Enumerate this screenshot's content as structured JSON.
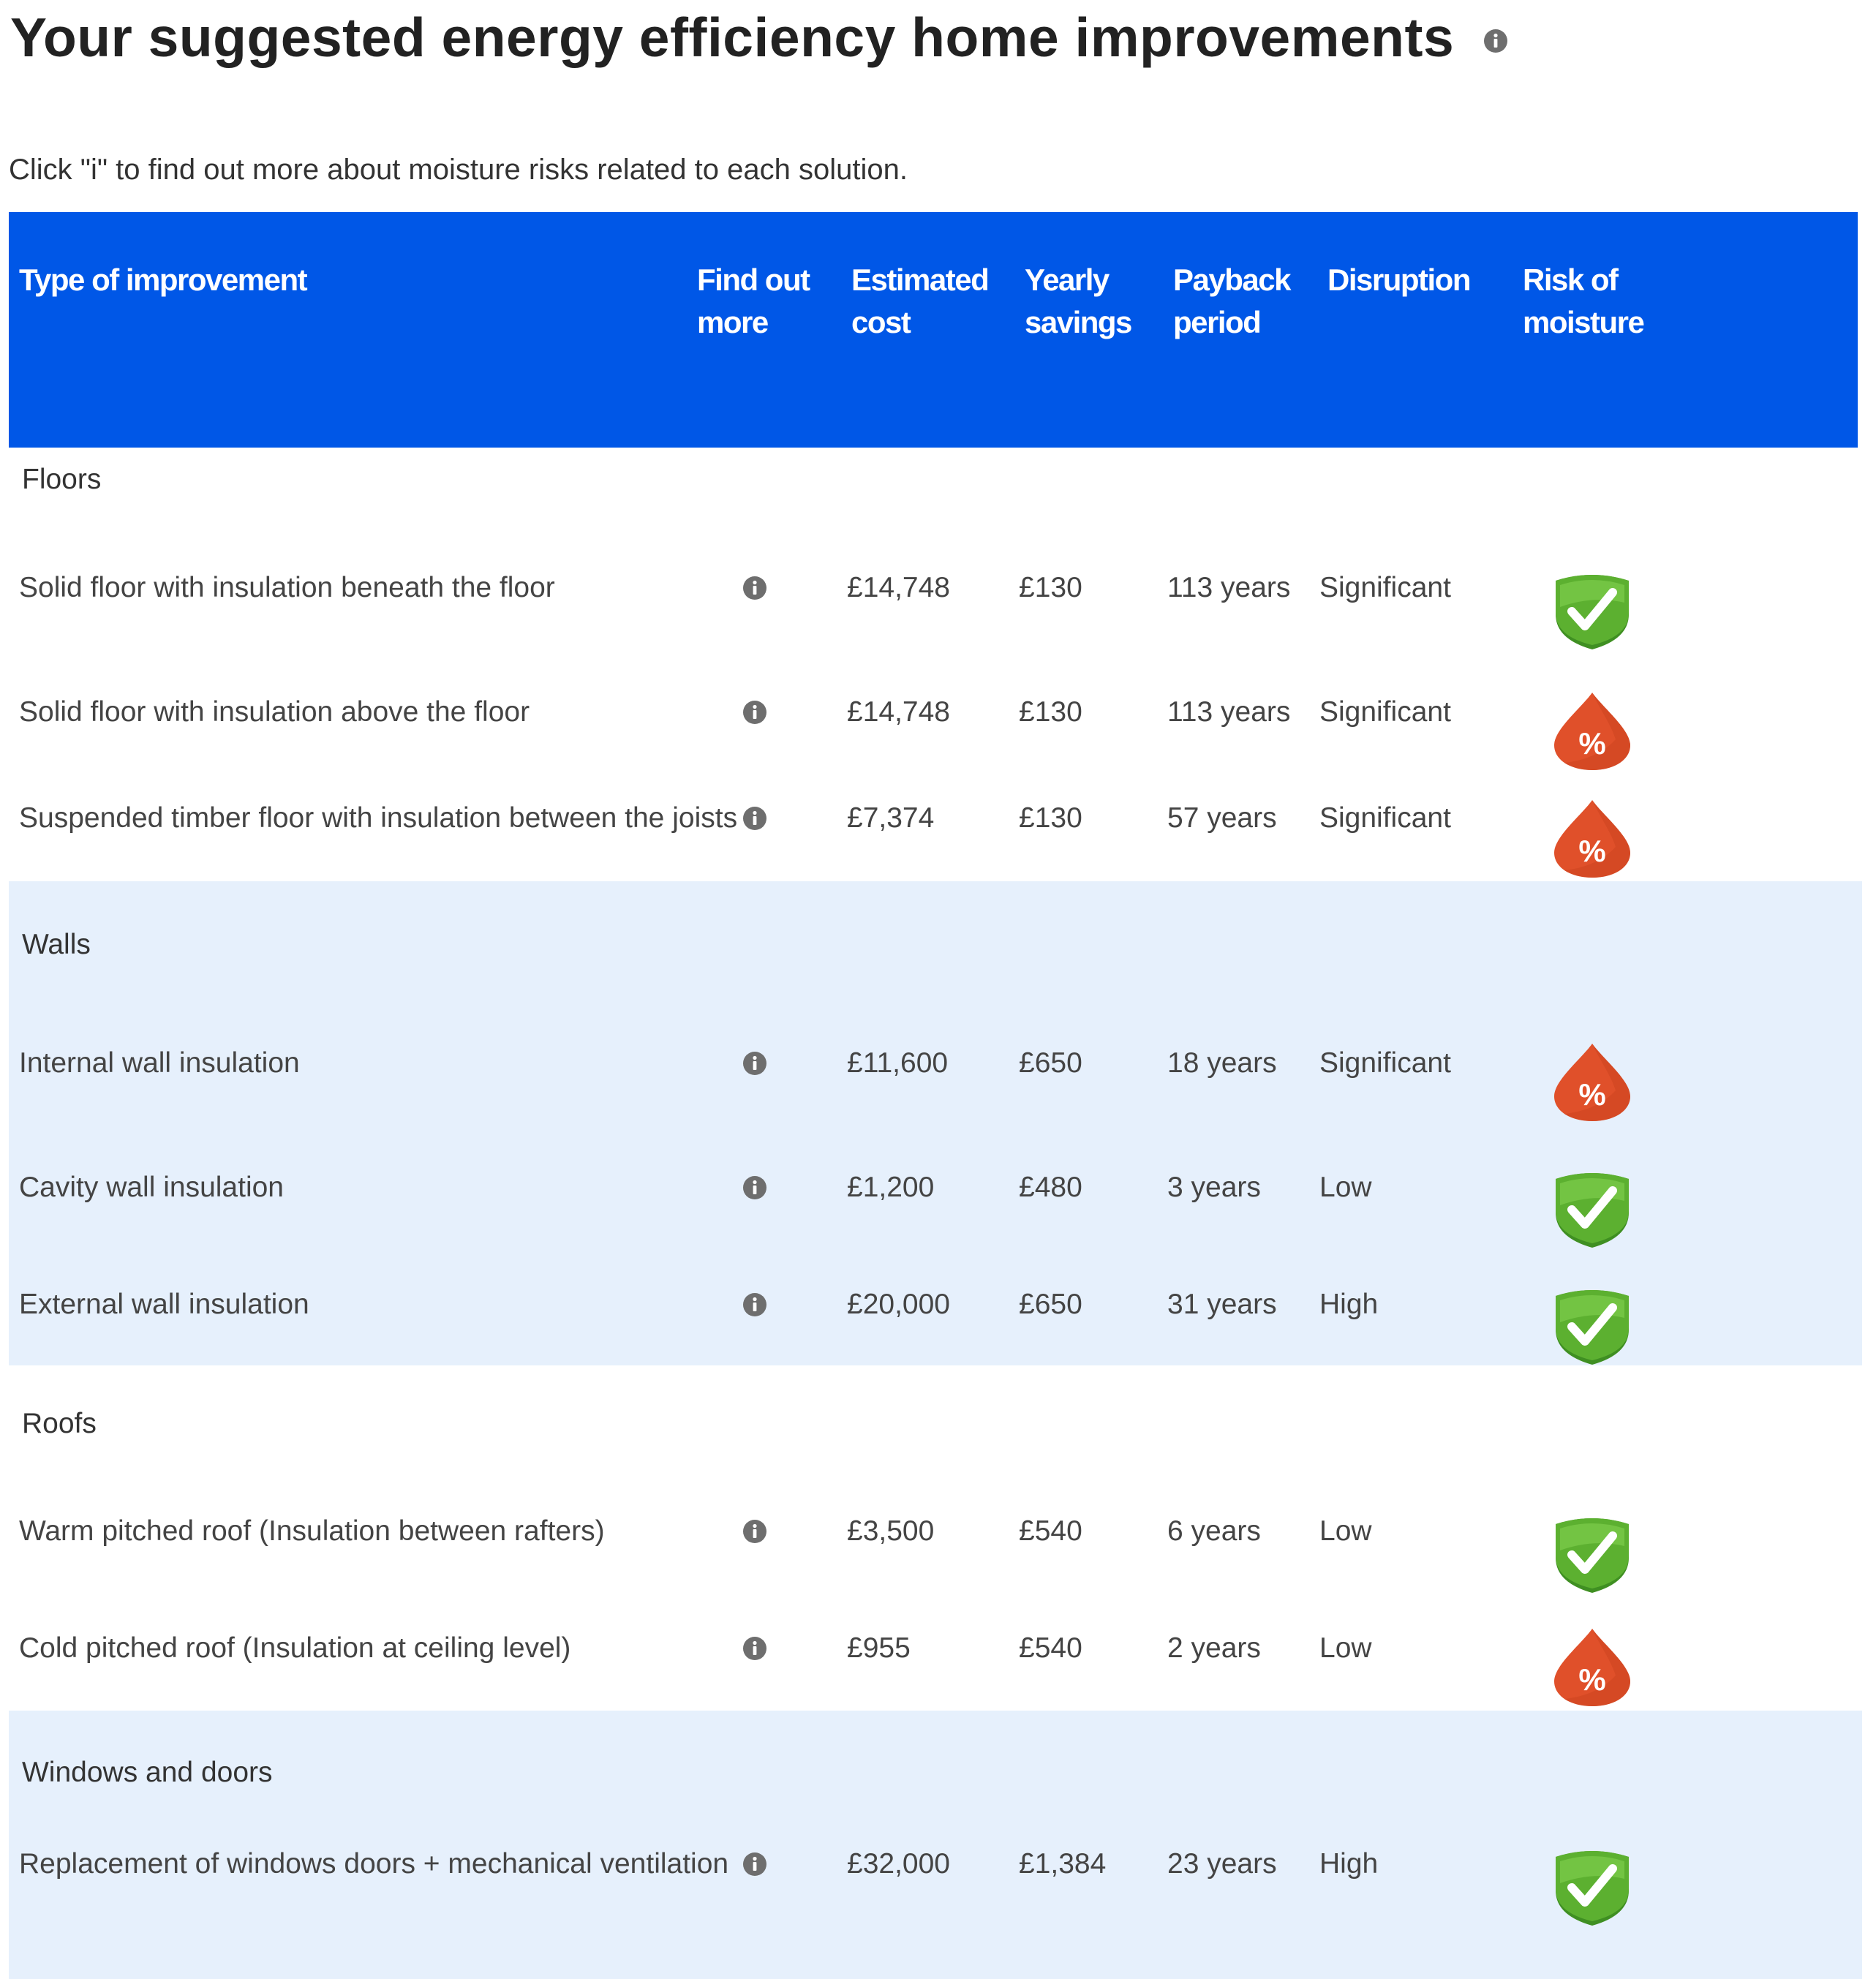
{
  "page": {
    "title": "Your suggested energy efficiency home improvements",
    "subtitle": "Click \"i\" to find out more about moisture risks related to each solution."
  },
  "table": {
    "headers": {
      "type": "Type of improvement",
      "find_out_more": [
        "Find out",
        "more"
      ],
      "estimated_cost": [
        "Estimated",
        "cost"
      ],
      "yearly_savings": [
        "Yearly",
        "savings"
      ],
      "payback": [
        "Payback",
        "period"
      ],
      "disruption": "Disruption",
      "risk": [
        "Risk of",
        "moisture"
      ]
    },
    "groups": {
      "floors": {
        "title": "Floors",
        "rows": [
          {
            "name": "Solid  floor with insulation beneath the floor",
            "cost": "£14,748",
            "savings": "£130",
            "payback": "113 years",
            "disruption": "Significant",
            "risk_icon": "shield-check-icon"
          },
          {
            "name": "Solid  floor with insulation above the floor",
            "cost": "£14,748",
            "savings": "£130",
            "payback": "113 years",
            "disruption": "Significant",
            "risk_icon": "moisture-drop-icon"
          },
          {
            "name": "Suspended timber floor with insulation between the joists",
            "cost": "£7,374",
            "savings": "£130",
            "payback": "57 years",
            "disruption": "Significant",
            "risk_icon": "moisture-drop-icon"
          }
        ]
      },
      "walls": {
        "title": "Walls",
        "rows": [
          {
            "name": "Internal wall insulation",
            "cost": "£11,600",
            "savings": "£650",
            "payback": "18 years",
            "disruption": "Significant",
            "risk_icon": "moisture-drop-icon"
          },
          {
            "name": "Cavity wall insulation",
            "cost": "£1,200",
            "savings": "£480",
            "payback": "3 years",
            "disruption": "Low",
            "risk_icon": "shield-check-icon"
          },
          {
            "name": "External wall insulation",
            "cost": "£20,000",
            "savings": "£650",
            "payback": "31 years",
            "disruption": "High",
            "risk_icon": "shield-check-icon"
          }
        ]
      },
      "roofs": {
        "title": "Roofs",
        "rows": [
          {
            "name": "Warm pitched roof (Insulation between rafters)",
            "cost": "£3,500",
            "savings": "£540",
            "payback": "6 years",
            "disruption": "Low",
            "risk_icon": "shield-check-icon"
          },
          {
            "name": "Cold pitched roof (Insulation at ceiling level)",
            "cost": "£955",
            "savings": "£540",
            "payback": "2 years",
            "disruption": "Low",
            "risk_icon": "moisture-drop-icon"
          }
        ]
      },
      "windows": {
        "title": "Windows and doors",
        "rows": [
          {
            "name": "Replacement of windows doors + mechanical ventilation",
            "cost": "£32,000",
            "savings": "£1,384",
            "payback": "23 years",
            "disruption": "High",
            "risk_icon": "shield-check-icon"
          }
        ]
      }
    },
    "icon_symbols": {
      "moisture": "%"
    }
  },
  "colors": {
    "header_bg": "#0057e7",
    "band_bg": "#e6f0fc",
    "shield_green": "#5cb030",
    "drop_red": "#e0502a",
    "info_grey": "#6e6e6e"
  }
}
